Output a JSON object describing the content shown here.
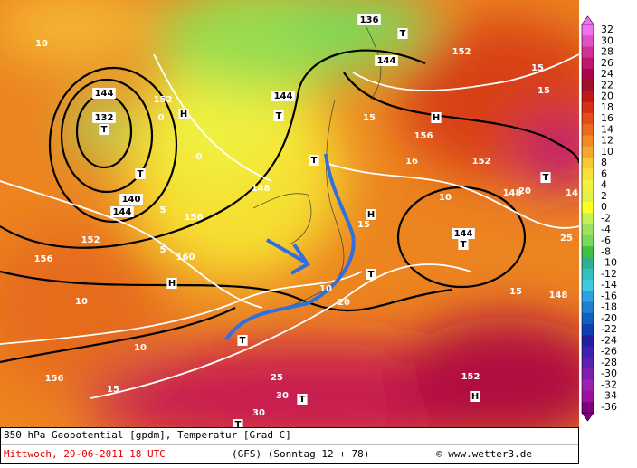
{
  "footer": {
    "title": "850 hPa Geopotential [gpdm], Temperatur [Grad C]",
    "date": "Mittwoch, 29-06-2011  18 UTC",
    "model": "(GFS)  (Sonntag 12 + 78)",
    "credit": "© www.wetter3.de"
  },
  "colorbar": {
    "labels": [
      32,
      30,
      28,
      26,
      24,
      22,
      20,
      18,
      16,
      14,
      12,
      10,
      8,
      6,
      4,
      2,
      0,
      -2,
      -4,
      -6,
      -8,
      -10,
      -12,
      -14,
      -16,
      -18,
      -20,
      -22,
      -24,
      -26,
      -28,
      -30,
      -32,
      -34,
      -36
    ],
    "colors": [
      "#f070f0",
      "#e050c8",
      "#d03098",
      "#c01870",
      "#a80848",
      "#a01028",
      "#c01818",
      "#d83014",
      "#e44c18",
      "#ec6a1c",
      "#f08a24",
      "#f4a82c",
      "#f8c830",
      "#f8e038",
      "#f4f040",
      "#e8f048",
      "#ffff20",
      "#c8f050",
      "#a0e060",
      "#78d858",
      "#40c040",
      "#30b090",
      "#30c0c0",
      "#40c8e0",
      "#30a0e0",
      "#2080d0",
      "#1060c0",
      "#1040b0",
      "#2020a0",
      "#4020b0",
      "#6020b0",
      "#8020b0",
      "#a020b0",
      "#a010a0",
      "#800080"
    ]
  },
  "map_labels": [
    "144",
    "132",
    "T",
    "H",
    "144",
    "T",
    "152",
    "0",
    "0",
    "148",
    "156",
    "160",
    "H",
    "5",
    "10",
    "15",
    "156",
    "10",
    "144",
    "152",
    "156",
    "T",
    "H",
    "15",
    "16",
    "156",
    "152",
    "H",
    "T",
    "144",
    "T",
    "10",
    "15",
    "20",
    "10",
    "15",
    "T",
    "25",
    "30",
    "T",
    "30",
    "T",
    "H",
    "152",
    "T",
    "136",
    "T",
    "144",
    "152",
    "15",
    "15",
    "14",
    "25",
    "T",
    "148",
    "20",
    "148",
    "5",
    "10",
    "140"
  ]
}
